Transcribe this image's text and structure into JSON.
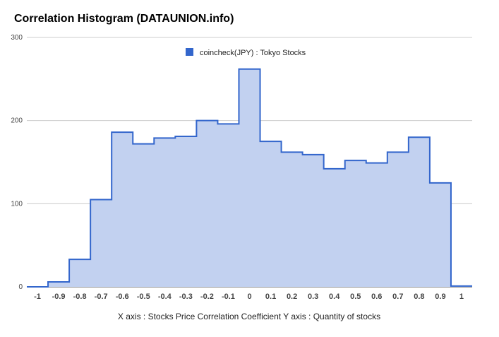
{
  "chart_data": {
    "type": "area",
    "title": "Correlation Histogram (DATAUNION.info)",
    "caption": "X axis : Stocks Price Correlation Coefficient  Y axis : Quantity of stocks",
    "series": [
      {
        "name": "coincheck(JPY) : Tokyo Stocks",
        "color": "#3366cc",
        "fill": "#c2d1f0",
        "bins": [
          {
            "x0": -1.05,
            "x1": -0.95,
            "value": 0
          },
          {
            "x0": -0.95,
            "x1": -0.85,
            "value": 6
          },
          {
            "x0": -0.85,
            "x1": -0.75,
            "value": 33
          },
          {
            "x0": -0.75,
            "x1": -0.65,
            "value": 105
          },
          {
            "x0": -0.65,
            "x1": -0.55,
            "value": 186
          },
          {
            "x0": -0.55,
            "x1": -0.45,
            "value": 172
          },
          {
            "x0": -0.45,
            "x1": -0.35,
            "value": 179
          },
          {
            "x0": -0.35,
            "x1": -0.25,
            "value": 181
          },
          {
            "x0": -0.25,
            "x1": -0.15,
            "value": 200
          },
          {
            "x0": -0.15,
            "x1": -0.05,
            "value": 196
          },
          {
            "x0": -0.05,
            "x1": 0.05,
            "value": 262
          },
          {
            "x0": 0.05,
            "x1": 0.15,
            "value": 175
          },
          {
            "x0": 0.15,
            "x1": 0.25,
            "value": 162
          },
          {
            "x0": 0.25,
            "x1": 0.35,
            "value": 159
          },
          {
            "x0": 0.35,
            "x1": 0.45,
            "value": 142
          },
          {
            "x0": 0.45,
            "x1": 0.55,
            "value": 152
          },
          {
            "x0": 0.55,
            "x1": 0.65,
            "value": 149
          },
          {
            "x0": 0.65,
            "x1": 0.75,
            "value": 162
          },
          {
            "x0": 0.75,
            "x1": 0.85,
            "value": 180
          },
          {
            "x0": 0.85,
            "x1": 0.95,
            "value": 125
          },
          {
            "x0": 0.95,
            "x1": 1.05,
            "value": 1
          }
        ]
      }
    ],
    "x_ticks": [
      "-1",
      "-0.9",
      "-0.8",
      "-0.7",
      "-0.6",
      "-0.5",
      "-0.4",
      "-0.3",
      "-0.2",
      "-0.1",
      "0",
      "0.1",
      "0.2",
      "0.3",
      "0.4",
      "0.5",
      "0.6",
      "0.7",
      "0.8",
      "0.9",
      "1"
    ],
    "y_ticks": [
      "0",
      "100",
      "200",
      "300"
    ],
    "xlim": [
      -1.05,
      1.05
    ],
    "ylim": [
      0,
      300
    ],
    "grid": true,
    "legend_position": "top-center"
  }
}
